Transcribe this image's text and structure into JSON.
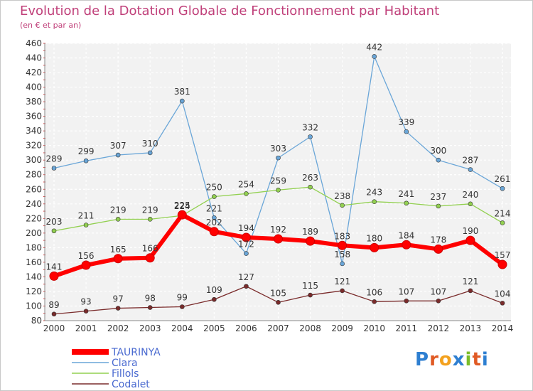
{
  "title": "Evolution de la Dotation Globale de Fonctionnement par Habitant",
  "subtitle": "(en € et par an)",
  "logo_text": "Proxiti",
  "chart_data": {
    "type": "line",
    "title": "Evolution de la Dotation Globale de Fonctionnement par Habitant",
    "subtitle": "(en € et par an)",
    "x": [
      "2000",
      "2001",
      "2002",
      "2003",
      "2004",
      "2005",
      "2006",
      "2007",
      "2008",
      "2009",
      "2010",
      "2011",
      "2012",
      "2013",
      "2014"
    ],
    "ylim": [
      80,
      460
    ],
    "ytick_step": 20,
    "grid": true,
    "legend_position": "bottom-left",
    "series": [
      {
        "name": "TAURINYA",
        "color": "#ff0000",
        "values": [
          141,
          156,
          165,
          166,
          225,
          202,
          194,
          192,
          189,
          183,
          180,
          184,
          178,
          190,
          157
        ]
      },
      {
        "name": "Clara",
        "color": "#6aa6d8",
        "values": [
          289,
          299,
          307,
          310,
          381,
          221,
          172,
          303,
          332,
          158,
          442,
          339,
          300,
          287,
          261
        ]
      },
      {
        "name": "Fillols",
        "color": "#92d050",
        "values": [
          203,
          211,
          219,
          219,
          224,
          250,
          254,
          259,
          263,
          238,
          243,
          241,
          237,
          240,
          214
        ]
      },
      {
        "name": "Codalet",
        "color": "#7a2b2b",
        "values": [
          89,
          93,
          97,
          98,
          99,
          109,
          127,
          105,
          115,
          121,
          106,
          107,
          107,
          121,
          104
        ]
      }
    ]
  }
}
